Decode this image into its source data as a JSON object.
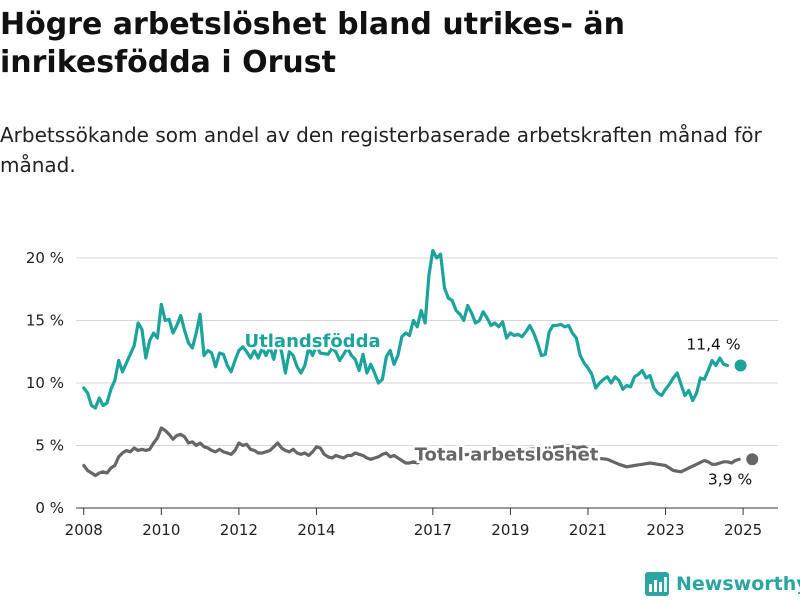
{
  "title": "Högre arbetslöshet bland utrikes- än inrikesfödda i Orust",
  "subtitle": "Arbetssökande som andel av den registerbaserade arbetskraften månad för månad.",
  "brand": {
    "name": "Newsworthy",
    "icon": "chart-logo-icon",
    "color": "#2aa5a0"
  },
  "chart_data": {
    "type": "line",
    "ylim": [
      0,
      20
    ],
    "yticks": [
      {
        "value": 0,
        "label": "0 %"
      },
      {
        "value": 5,
        "label": "5 %"
      },
      {
        "value": 10,
        "label": "10 %"
      },
      {
        "value": 15,
        "label": "15 %"
      },
      {
        "value": 20,
        "label": "20 %"
      }
    ],
    "xlim": [
      2007.8,
      2025.9
    ],
    "xticks": [
      {
        "value": 2008,
        "label": "2008"
      },
      {
        "value": 2010,
        "label": "2010"
      },
      {
        "value": 2012,
        "label": "2012"
      },
      {
        "value": 2014,
        "label": "2014"
      },
      {
        "value": 2017,
        "label": "2017"
      },
      {
        "value": 2019,
        "label": "2019"
      },
      {
        "value": 2021,
        "label": "2021"
      },
      {
        "value": 2023,
        "label": "2023"
      },
      {
        "value": 2025,
        "label": "2025"
      }
    ],
    "grid": true,
    "series": [
      {
        "name": "Utlandsfödda",
        "color": "#1ba39c",
        "end_label": "11,4 %",
        "points": [
          [
            2008.0,
            9.6
          ],
          [
            2008.1,
            9.2
          ],
          [
            2008.2,
            8.2
          ],
          [
            2008.3,
            8.0
          ],
          [
            2008.4,
            8.8
          ],
          [
            2008.5,
            8.2
          ],
          [
            2008.6,
            8.4
          ],
          [
            2008.7,
            9.5
          ],
          [
            2008.8,
            10.2
          ],
          [
            2008.9,
            11.8
          ],
          [
            2009.0,
            10.9
          ],
          [
            2009.1,
            11.6
          ],
          [
            2009.2,
            12.3
          ],
          [
            2009.3,
            13.0
          ],
          [
            2009.4,
            14.8
          ],
          [
            2009.5,
            14.3
          ],
          [
            2009.6,
            12.0
          ],
          [
            2009.7,
            13.4
          ],
          [
            2009.8,
            14.0
          ],
          [
            2009.9,
            13.6
          ],
          [
            2010.0,
            16.3
          ],
          [
            2010.1,
            15.0
          ],
          [
            2010.2,
            15.1
          ],
          [
            2010.3,
            14.0
          ],
          [
            2010.4,
            14.6
          ],
          [
            2010.5,
            15.4
          ],
          [
            2010.6,
            14.2
          ],
          [
            2010.7,
            13.2
          ],
          [
            2010.8,
            12.8
          ],
          [
            2010.9,
            14.0
          ],
          [
            2011.0,
            15.5
          ],
          [
            2011.1,
            12.2
          ],
          [
            2011.2,
            12.6
          ],
          [
            2011.3,
            12.4
          ],
          [
            2011.4,
            11.3
          ],
          [
            2011.5,
            12.4
          ],
          [
            2011.6,
            12.3
          ],
          [
            2011.7,
            11.4
          ],
          [
            2011.8,
            10.9
          ],
          [
            2011.9,
            11.8
          ],
          [
            2012.0,
            12.6
          ],
          [
            2012.1,
            12.9
          ],
          [
            2012.2,
            12.5
          ],
          [
            2012.3,
            12.0
          ],
          [
            2012.4,
            12.6
          ],
          [
            2012.5,
            12.0
          ],
          [
            2012.6,
            12.8
          ],
          [
            2012.7,
            12.2
          ],
          [
            2012.8,
            12.9
          ],
          [
            2012.9,
            11.9
          ],
          [
            2013.0,
            13.4
          ],
          [
            2013.1,
            12.5
          ],
          [
            2013.2,
            10.8
          ],
          [
            2013.3,
            12.5
          ],
          [
            2013.4,
            12.2
          ],
          [
            2013.5,
            11.3
          ],
          [
            2013.6,
            10.8
          ],
          [
            2013.7,
            11.4
          ],
          [
            2013.8,
            12.8
          ],
          [
            2013.9,
            12.2
          ],
          [
            2014.0,
            13.0
          ],
          [
            2014.1,
            12.4
          ],
          [
            2014.3,
            12.3
          ],
          [
            2014.4,
            12.8
          ],
          [
            2014.5,
            12.5
          ],
          [
            2014.6,
            11.8
          ],
          [
            2014.7,
            12.3
          ],
          [
            2014.8,
            12.8
          ],
          [
            2014.9,
            12.2
          ],
          [
            2015.0,
            11.9
          ],
          [
            2015.1,
            11.0
          ],
          [
            2015.2,
            12.3
          ],
          [
            2015.3,
            10.8
          ],
          [
            2015.4,
            11.5
          ],
          [
            2015.5,
            10.8
          ],
          [
            2015.6,
            10.0
          ],
          [
            2015.7,
            10.3
          ],
          [
            2015.8,
            12.1
          ],
          [
            2015.9,
            12.6
          ],
          [
            2016.0,
            11.5
          ],
          [
            2016.1,
            12.2
          ],
          [
            2016.2,
            13.7
          ],
          [
            2016.3,
            14.0
          ],
          [
            2016.4,
            13.8
          ],
          [
            2016.5,
            15.0
          ],
          [
            2016.6,
            14.5
          ],
          [
            2016.7,
            15.8
          ],
          [
            2016.8,
            14.8
          ],
          [
            2016.9,
            18.6
          ],
          [
            2017.0,
            20.6
          ],
          [
            2017.1,
            20.0
          ],
          [
            2017.2,
            20.3
          ],
          [
            2017.3,
            17.6
          ],
          [
            2017.4,
            16.8
          ],
          [
            2017.5,
            16.6
          ],
          [
            2017.6,
            15.8
          ],
          [
            2017.7,
            15.5
          ],
          [
            2017.8,
            15.0
          ],
          [
            2017.9,
            16.2
          ],
          [
            2018.0,
            15.6
          ],
          [
            2018.1,
            14.8
          ],
          [
            2018.2,
            15.0
          ],
          [
            2018.3,
            15.7
          ],
          [
            2018.4,
            15.2
          ],
          [
            2018.5,
            14.6
          ],
          [
            2018.6,
            14.8
          ],
          [
            2018.7,
            14.5
          ],
          [
            2018.8,
            14.9
          ],
          [
            2018.9,
            13.6
          ],
          [
            2019.0,
            14.0
          ],
          [
            2019.1,
            13.8
          ],
          [
            2019.2,
            13.9
          ],
          [
            2019.3,
            13.7
          ],
          [
            2019.4,
            14.1
          ],
          [
            2019.5,
            14.6
          ],
          [
            2019.6,
            14.0
          ],
          [
            2019.7,
            13.2
          ],
          [
            2019.8,
            12.2
          ],
          [
            2019.9,
            12.3
          ],
          [
            2020.0,
            14.1
          ],
          [
            2020.1,
            14.6
          ],
          [
            2020.2,
            14.6
          ],
          [
            2020.3,
            14.7
          ],
          [
            2020.4,
            14.5
          ],
          [
            2020.5,
            14.6
          ],
          [
            2020.6,
            14.0
          ],
          [
            2020.7,
            13.6
          ],
          [
            2020.8,
            12.2
          ],
          [
            2020.9,
            11.6
          ],
          [
            2021.0,
            11.2
          ],
          [
            2021.1,
            10.7
          ],
          [
            2021.2,
            9.6
          ],
          [
            2021.3,
            10.0
          ],
          [
            2021.4,
            10.3
          ],
          [
            2021.5,
            10.5
          ],
          [
            2021.6,
            10.0
          ],
          [
            2021.7,
            10.5
          ],
          [
            2021.8,
            10.2
          ],
          [
            2021.9,
            9.5
          ],
          [
            2022.0,
            9.8
          ],
          [
            2022.1,
            9.7
          ],
          [
            2022.2,
            10.5
          ],
          [
            2022.3,
            10.7
          ],
          [
            2022.4,
            11.0
          ],
          [
            2022.5,
            10.4
          ],
          [
            2022.6,
            10.6
          ],
          [
            2022.7,
            9.6
          ],
          [
            2022.8,
            9.2
          ],
          [
            2022.9,
            9.0
          ],
          [
            2023.0,
            9.5
          ],
          [
            2023.1,
            9.9
          ],
          [
            2023.2,
            10.4
          ],
          [
            2023.3,
            10.8
          ],
          [
            2023.4,
            9.9
          ],
          [
            2023.5,
            9.0
          ],
          [
            2023.6,
            9.4
          ],
          [
            2023.7,
            8.6
          ],
          [
            2023.8,
            9.2
          ],
          [
            2023.9,
            10.4
          ],
          [
            2024.0,
            10.3
          ],
          [
            2024.1,
            11.0
          ],
          [
            2024.2,
            11.8
          ],
          [
            2024.3,
            11.4
          ],
          [
            2024.4,
            12.0
          ],
          [
            2024.5,
            11.5
          ],
          [
            2024.6,
            11.4
          ]
        ]
      },
      {
        "name": "Total arbetslöshet",
        "color": "#666666",
        "end_label": "3,9 %",
        "points": [
          [
            2008.0,
            3.4
          ],
          [
            2008.1,
            3.0
          ],
          [
            2008.2,
            2.8
          ],
          [
            2008.3,
            2.6
          ],
          [
            2008.4,
            2.8
          ],
          [
            2008.5,
            2.9
          ],
          [
            2008.6,
            2.8
          ],
          [
            2008.7,
            3.2
          ],
          [
            2008.8,
            3.4
          ],
          [
            2008.9,
            4.1
          ],
          [
            2009.0,
            4.4
          ],
          [
            2009.1,
            4.6
          ],
          [
            2009.2,
            4.5
          ],
          [
            2009.3,
            4.8
          ],
          [
            2009.4,
            4.6
          ],
          [
            2009.5,
            4.7
          ],
          [
            2009.6,
            4.6
          ],
          [
            2009.7,
            4.7
          ],
          [
            2009.8,
            5.2
          ],
          [
            2009.9,
            5.6
          ],
          [
            2010.0,
            6.4
          ],
          [
            2010.1,
            6.2
          ],
          [
            2010.2,
            5.9
          ],
          [
            2010.3,
            5.5
          ],
          [
            2010.4,
            5.8
          ],
          [
            2010.5,
            5.9
          ],
          [
            2010.6,
            5.7
          ],
          [
            2010.7,
            5.2
          ],
          [
            2010.8,
            5.3
          ],
          [
            2010.9,
            5.0
          ],
          [
            2011.0,
            5.2
          ],
          [
            2011.1,
            4.9
          ],
          [
            2011.2,
            4.8
          ],
          [
            2011.3,
            4.6
          ],
          [
            2011.4,
            4.5
          ],
          [
            2011.5,
            4.7
          ],
          [
            2011.6,
            4.5
          ],
          [
            2011.7,
            4.4
          ],
          [
            2011.8,
            4.3
          ],
          [
            2011.9,
            4.6
          ],
          [
            2012.0,
            5.2
          ],
          [
            2012.1,
            5.0
          ],
          [
            2012.2,
            5.1
          ],
          [
            2012.3,
            4.7
          ],
          [
            2012.4,
            4.6
          ],
          [
            2012.5,
            4.4
          ],
          [
            2012.6,
            4.4
          ],
          [
            2012.7,
            4.5
          ],
          [
            2012.8,
            4.6
          ],
          [
            2012.9,
            4.9
          ],
          [
            2013.0,
            5.2
          ],
          [
            2013.1,
            4.8
          ],
          [
            2013.2,
            4.6
          ],
          [
            2013.3,
            4.5
          ],
          [
            2013.4,
            4.7
          ],
          [
            2013.5,
            4.4
          ],
          [
            2013.6,
            4.3
          ],
          [
            2013.7,
            4.4
          ],
          [
            2013.8,
            4.2
          ],
          [
            2013.9,
            4.5
          ],
          [
            2014.0,
            4.9
          ],
          [
            2014.1,
            4.8
          ],
          [
            2014.2,
            4.3
          ],
          [
            2014.3,
            4.1
          ],
          [
            2014.4,
            4.0
          ],
          [
            2014.5,
            4.2
          ],
          [
            2014.6,
            4.1
          ],
          [
            2014.7,
            4.0
          ],
          [
            2014.8,
            4.2
          ],
          [
            2014.9,
            4.2
          ],
          [
            2015.0,
            4.4
          ],
          [
            2015.1,
            4.3
          ],
          [
            2015.2,
            4.2
          ],
          [
            2015.3,
            4.0
          ],
          [
            2015.4,
            3.9
          ],
          [
            2015.5,
            4.0
          ],
          [
            2015.6,
            4.1
          ],
          [
            2015.7,
            4.3
          ],
          [
            2015.8,
            4.4
          ],
          [
            2015.9,
            4.1
          ],
          [
            2016.0,
            4.2
          ],
          [
            2016.1,
            4.0
          ],
          [
            2016.2,
            3.8
          ],
          [
            2016.3,
            3.6
          ],
          [
            2016.4,
            3.6
          ],
          [
            2016.5,
            3.7
          ],
          [
            2016.6,
            3.6
          ],
          [
            2016.7,
            3.8
          ],
          [
            2016.8,
            4.0
          ],
          [
            2020.3,
            4.9
          ],
          [
            2020.5,
            5.0
          ],
          [
            2020.7,
            4.8
          ],
          [
            2020.9,
            4.9
          ],
          [
            2021.0,
            4.7
          ],
          [
            2021.1,
            4.4
          ],
          [
            2021.2,
            4.0
          ],
          [
            2021.5,
            3.9
          ],
          [
            2021.8,
            3.5
          ],
          [
            2022.0,
            3.3
          ],
          [
            2022.2,
            3.4
          ],
          [
            2022.4,
            3.5
          ],
          [
            2022.6,
            3.6
          ],
          [
            2022.8,
            3.5
          ],
          [
            2023.0,
            3.4
          ],
          [
            2023.2,
            3.0
          ],
          [
            2023.4,
            2.9
          ],
          [
            2023.6,
            3.2
          ],
          [
            2023.8,
            3.5
          ],
          [
            2024.0,
            3.8
          ],
          [
            2024.1,
            3.7
          ],
          [
            2024.2,
            3.5
          ],
          [
            2024.3,
            3.5
          ],
          [
            2024.4,
            3.6
          ],
          [
            2024.5,
            3.7
          ],
          [
            2024.6,
            3.7
          ],
          [
            2024.7,
            3.6
          ],
          [
            2024.8,
            3.8
          ],
          [
            2024.9,
            3.9
          ]
        ]
      }
    ],
    "annotations": [
      {
        "text": "Utlandsfödda",
        "series": "Utlandsfödda",
        "at_x": 2013.9,
        "at_y": 12.9
      },
      {
        "text": "Total arbetslöshet",
        "series": "Total arbetslöshet",
        "at_x": 2018.9,
        "at_y": 3.8
      }
    ]
  }
}
